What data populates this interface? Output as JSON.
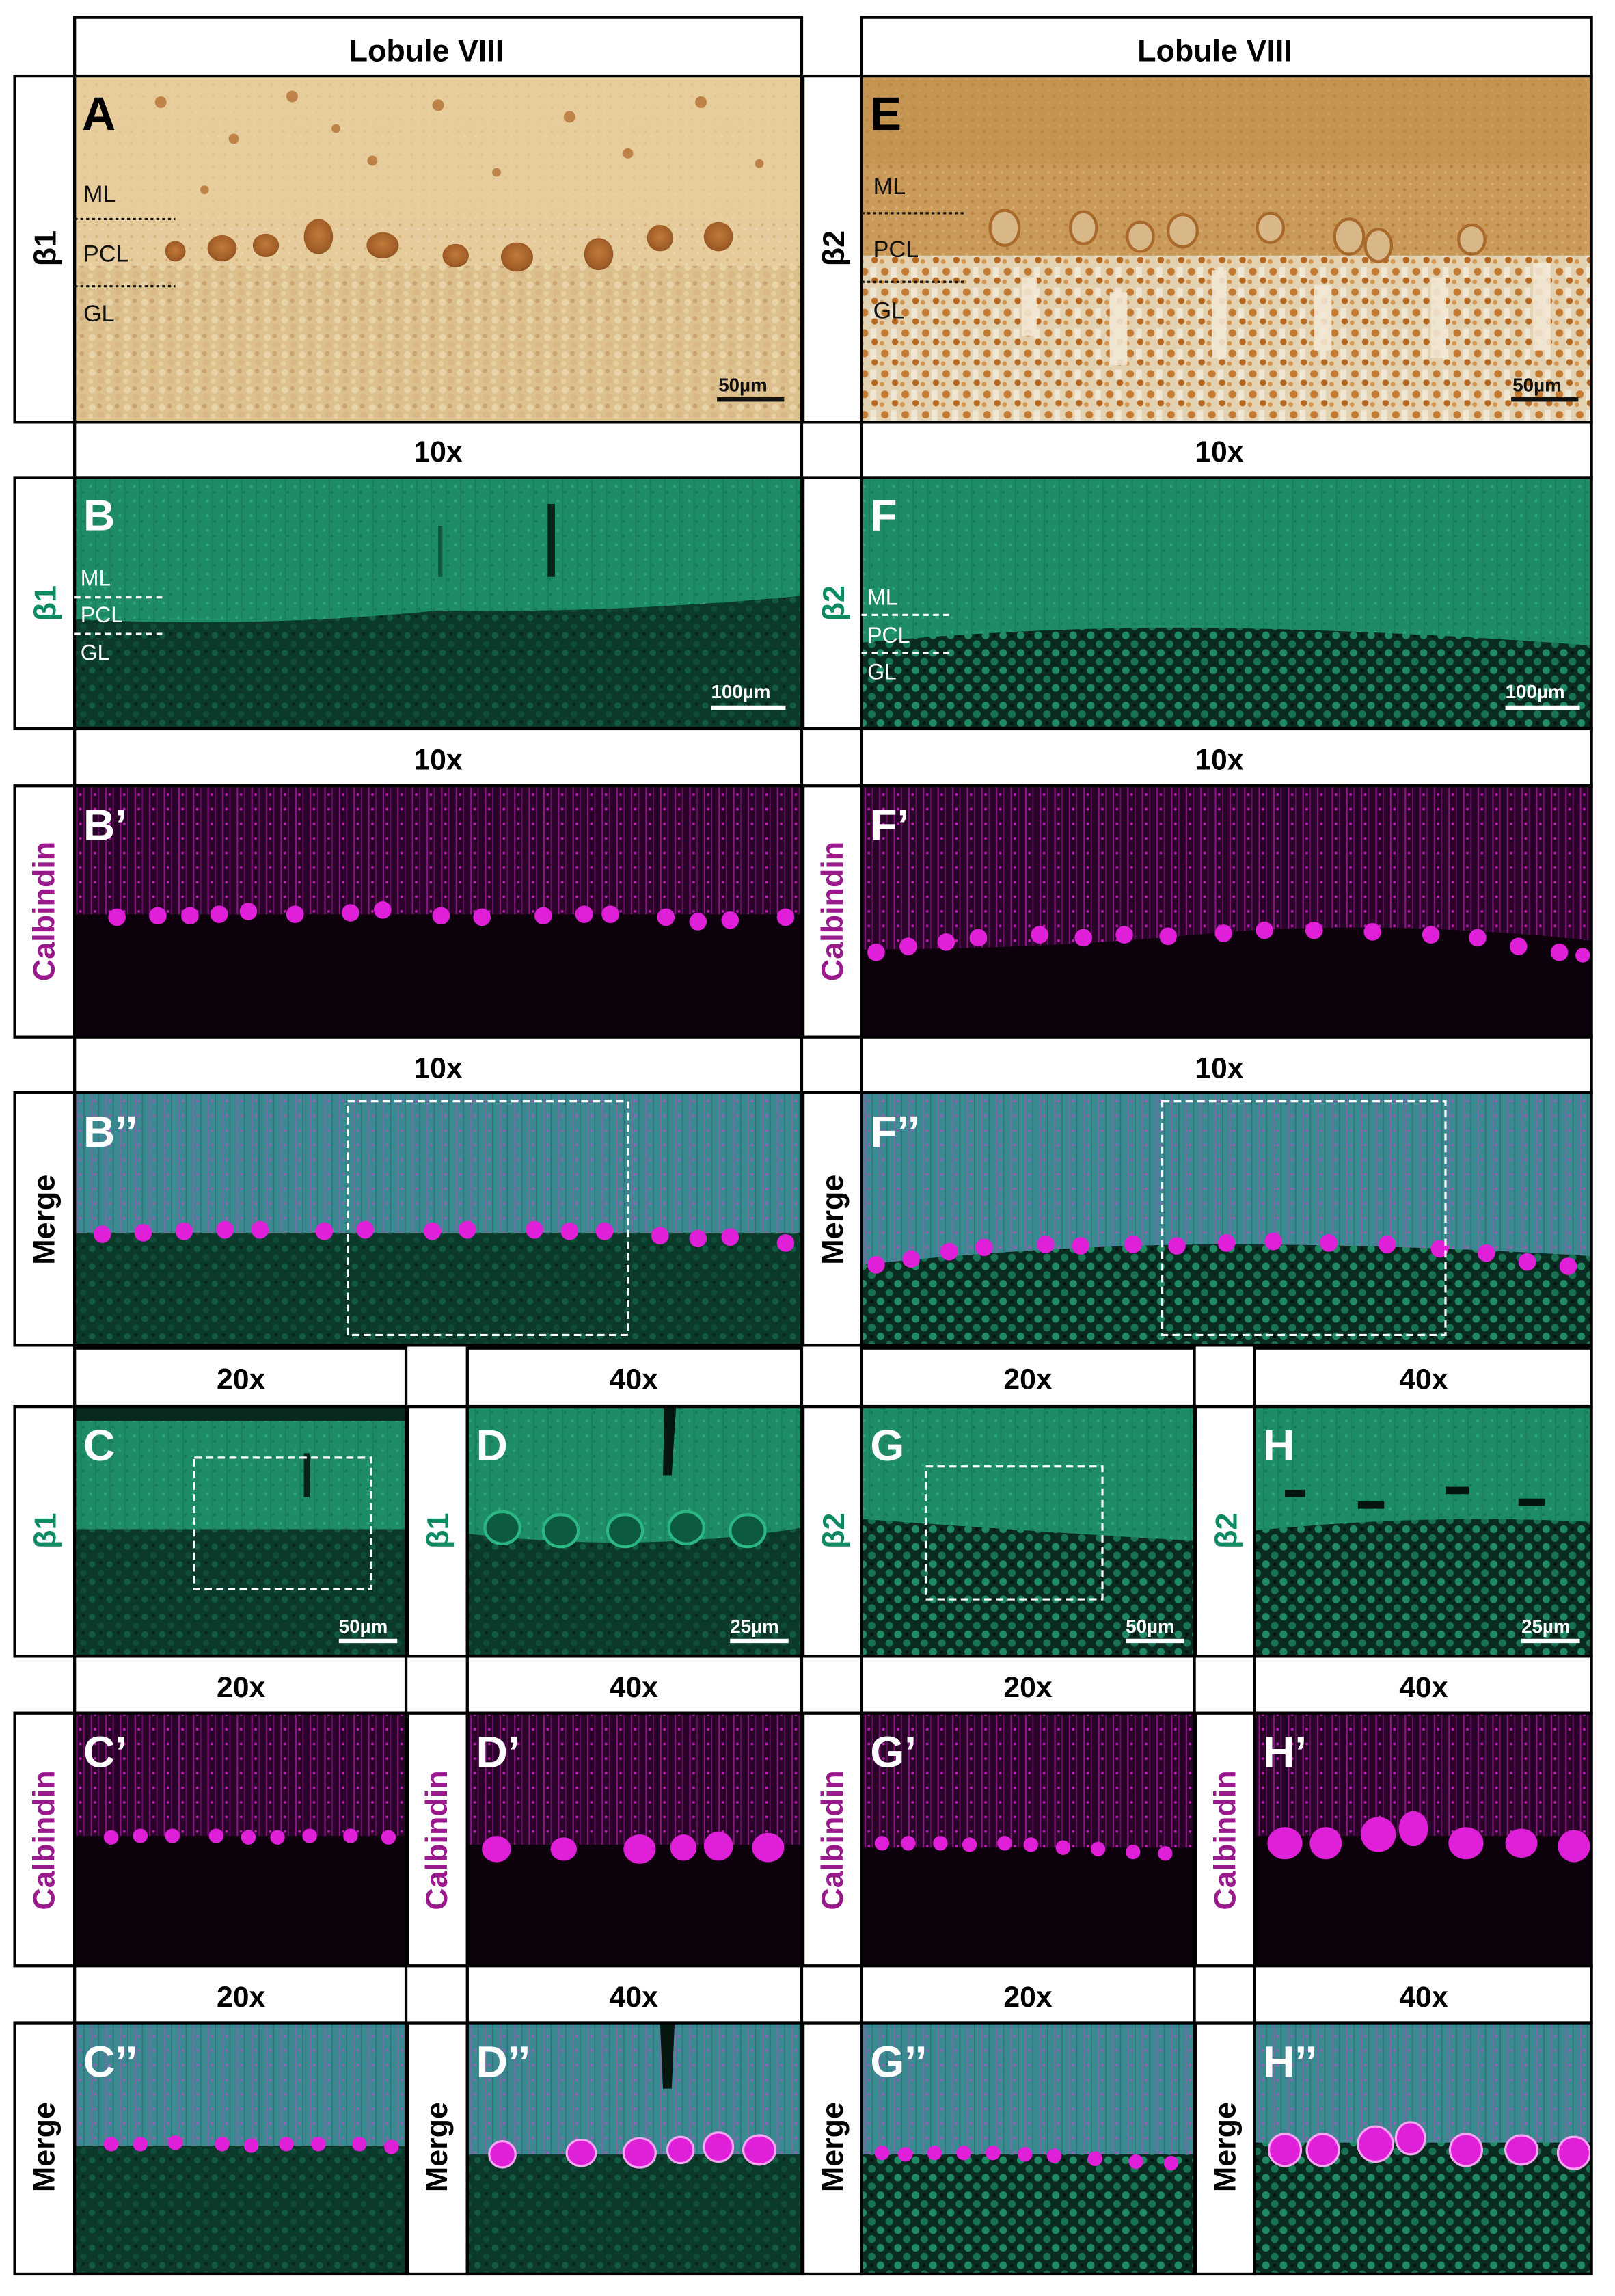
{
  "figure": {
    "header_top": "Lobule VIII",
    "mag_10x": "10x",
    "mag_20x": "20x",
    "mag_40x": "40x",
    "layer_ml": "ML",
    "layer_pcl": "PCL",
    "layer_gl": "GL",
    "label_beta1": "β1",
    "label_beta2": "β2",
    "label_calbindin": "Calbindin",
    "label_merge": "Merge",
    "scale_50": "50µm",
    "scale_100": "100µm",
    "scale_25": "25µm",
    "colors": {
      "beta_text": "#0e8a63",
      "calbindin_text": "#9a1a8e",
      "dab_bg": "#e3c796",
      "dab_dark": "#a7632a",
      "green": "#1f9a70",
      "green_dark": "#0b3327",
      "magenta": "#e01fd8",
      "merge_top": "#3f8f95"
    },
    "panel_letters": {
      "A": "A",
      "B": "B",
      "B1": "B’",
      "B2": "B’’",
      "C": "C",
      "C1": "C’",
      "C2": "C’’",
      "D": "D",
      "D1": "D’",
      "D2": "D’’",
      "E": "E",
      "F": "F",
      "F1": "F’",
      "F2": "F’’",
      "G": "G",
      "G1": "G’",
      "G2": "G’’",
      "H": "H",
      "H1": "H’",
      "H2": "H’’"
    }
  }
}
